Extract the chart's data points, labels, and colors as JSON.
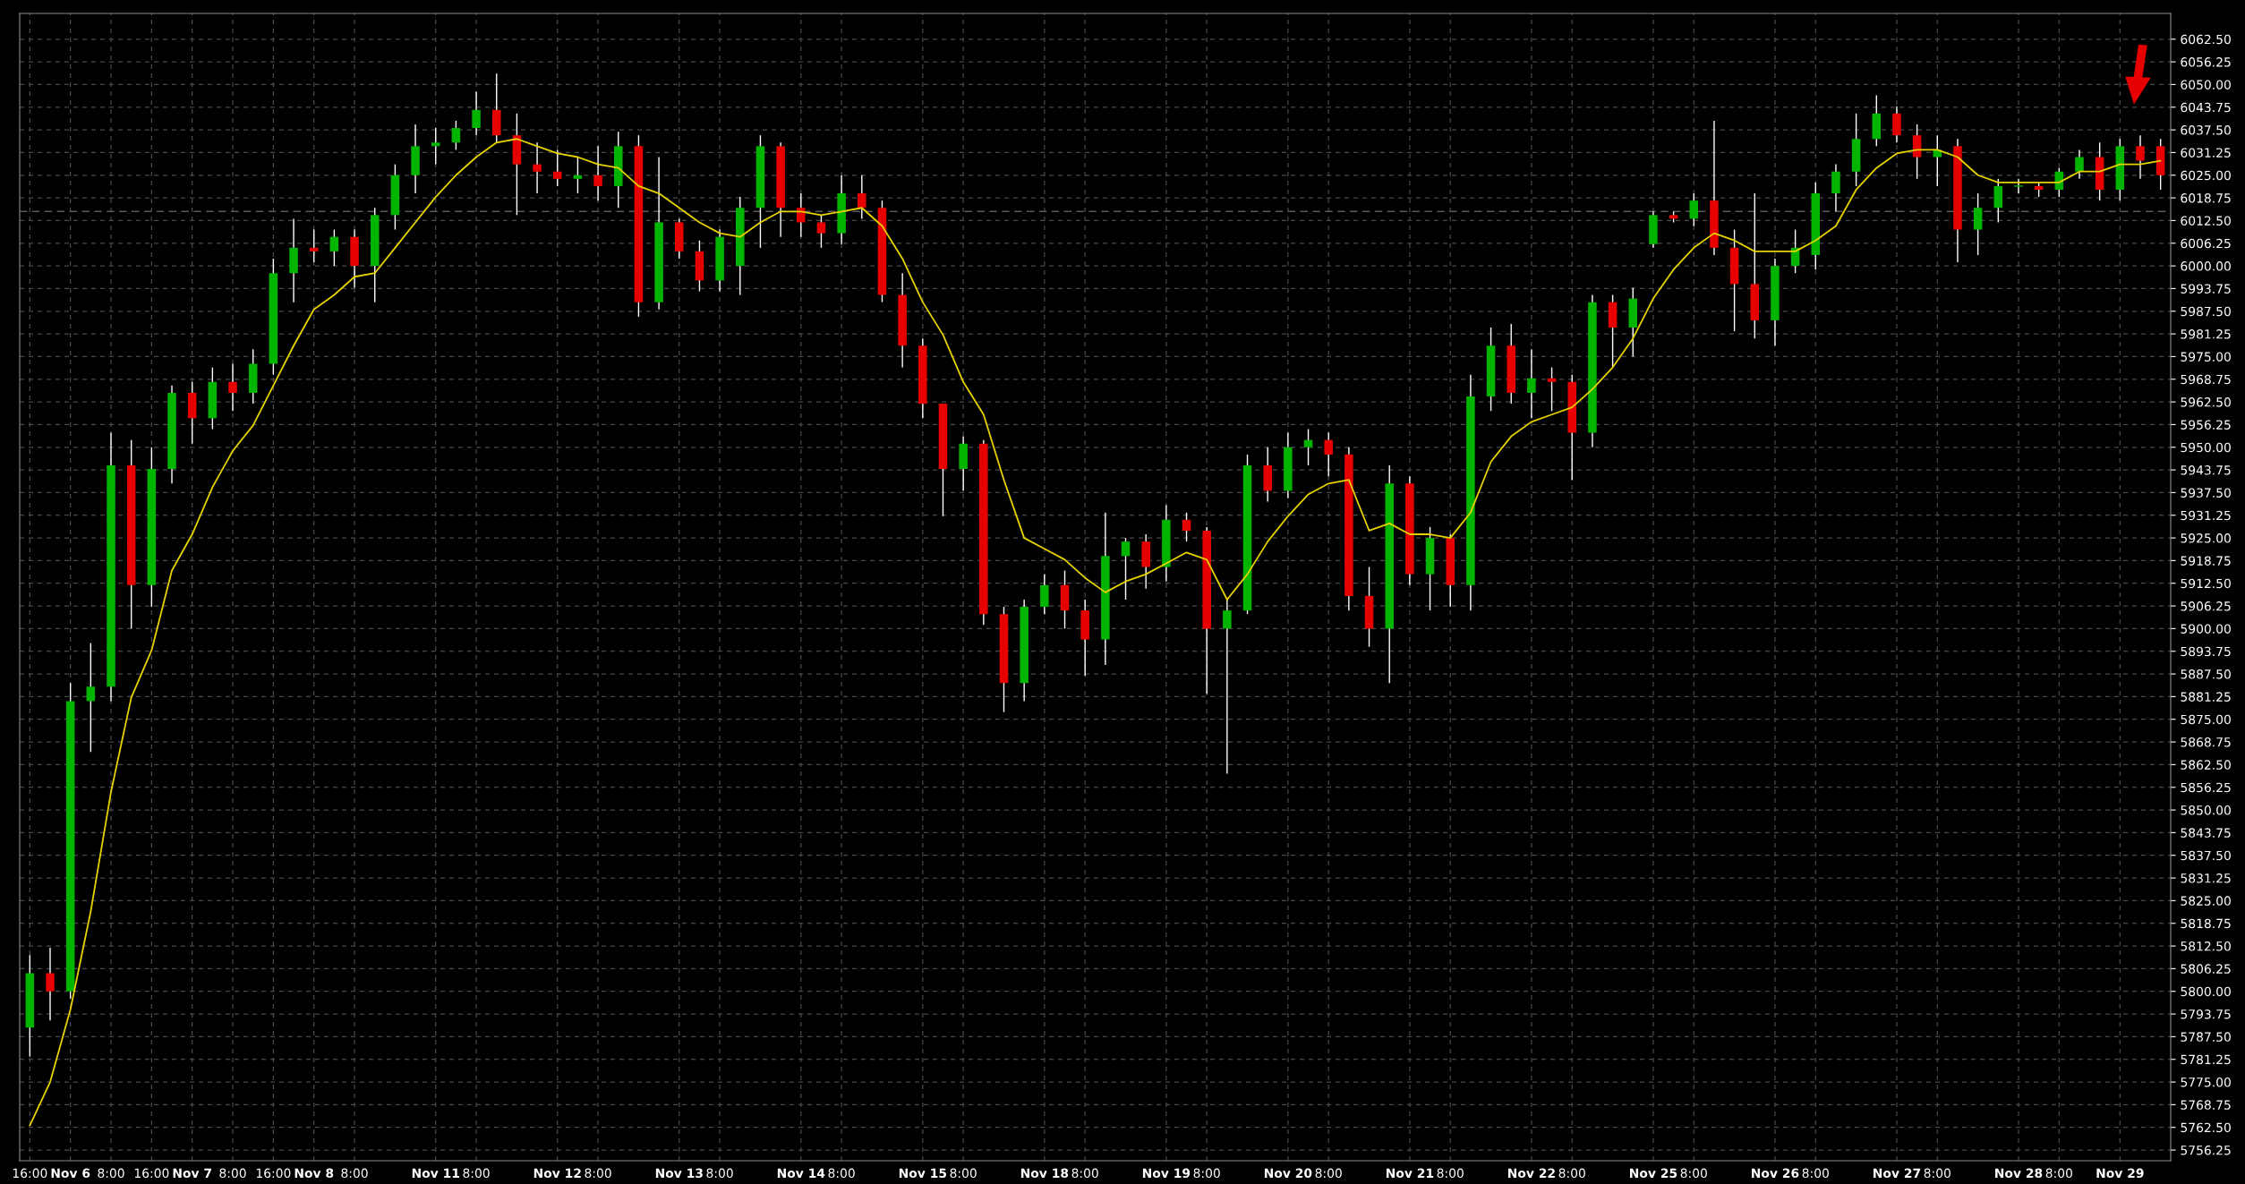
{
  "chart_data": {
    "type": "candlestick",
    "categories": [
      "16:00",
      null,
      "Nov 6",
      null,
      "8:00",
      null,
      "16:00",
      null,
      "Nov 7",
      null,
      "8:00",
      null,
      "16:00",
      null,
      "Nov 8",
      null,
      "8:00",
      null,
      null,
      null,
      "Nov 11",
      null,
      "8:00",
      null,
      null,
      null,
      "Nov 12",
      null,
      "8:00",
      null,
      null,
      null,
      "Nov 13",
      null,
      "8:00",
      null,
      null,
      null,
      "Nov 14",
      null,
      "8:00",
      null,
      null,
      null,
      "Nov 15",
      null,
      "8:00",
      null,
      null,
      null,
      "Nov 18",
      null,
      "8:00",
      null,
      null,
      null,
      "Nov 19",
      null,
      "8:00",
      null,
      null,
      null,
      "Nov 20",
      null,
      "8:00",
      null,
      null,
      null,
      "Nov 21",
      null,
      "8:00",
      null,
      null,
      null,
      "Nov 22",
      null,
      "8:00",
      null,
      null,
      null,
      "Nov 25",
      null,
      "8:00",
      null,
      null,
      null,
      "Nov 26",
      null,
      "8:00",
      null,
      null,
      null,
      "Nov 27",
      null,
      "8:00",
      null,
      null,
      null,
      "Nov 28",
      null,
      "8:00",
      null,
      null,
      "Nov 29",
      null,
      null
    ],
    "ohlc": [
      [
        5790,
        5810,
        5782,
        5805
      ],
      [
        5805,
        5812,
        5792,
        5800
      ],
      [
        5800,
        5885,
        5798,
        5880
      ],
      [
        5880,
        5896,
        5866,
        5884
      ],
      [
        5884,
        5954,
        5880,
        5945
      ],
      [
        5945,
        5952,
        5900,
        5912
      ],
      [
        5912,
        5950,
        5906,
        5944
      ],
      [
        5944,
        5967,
        5940,
        5965
      ],
      [
        5965,
        5968,
        5951,
        5958
      ],
      [
        5958,
        5972,
        5955,
        5968
      ],
      [
        5968,
        5973,
        5960,
        5965
      ],
      [
        5965,
        5977,
        5962,
        5973
      ],
      [
        5973,
        6002,
        5970,
        5998
      ],
      [
        5998,
        6013,
        5990,
        6005
      ],
      [
        6005,
        6010,
        6001,
        6004
      ],
      [
        6004,
        6010,
        6000,
        6008
      ],
      [
        6008,
        6010,
        5994,
        6000
      ],
      [
        6000,
        6016,
        5990,
        6014
      ],
      [
        6014,
        6028,
        6010,
        6025
      ],
      [
        6025,
        6039,
        6020,
        6033
      ],
      [
        6033,
        6038,
        6028,
        6034
      ],
      [
        6034,
        6040,
        6032,
        6038
      ],
      [
        6038,
        6048,
        6036,
        6043
      ],
      [
        6043,
        6053,
        6034,
        6036
      ],
      [
        6036,
        6042,
        6014,
        6028
      ],
      [
        6028,
        6034,
        6020,
        6026
      ],
      [
        6026,
        6032,
        6022,
        6024
      ],
      [
        6024,
        6030,
        6020,
        6025
      ],
      [
        6025,
        6033,
        6018,
        6022
      ],
      [
        6022,
        6037,
        6016,
        6033
      ],
      [
        6033,
        6036,
        5986,
        5990
      ],
      [
        5990,
        6030,
        5988,
        6012
      ],
      [
        6012,
        6013,
        6002,
        6004
      ],
      [
        6004,
        6007,
        5993,
        5996
      ],
      [
        5996,
        6010,
        5993,
        6008
      ],
      [
        6000,
        6019,
        5992,
        6016
      ],
      [
        6016,
        6036,
        6005,
        6033
      ],
      [
        6033,
        6034,
        6008,
        6016
      ],
      [
        6016,
        6020,
        6008,
        6012
      ],
      [
        6012,
        6014,
        6005,
        6009
      ],
      [
        6009,
        6025,
        6006,
        6020
      ],
      [
        6020,
        6025,
        6013,
        6016
      ],
      [
        6016,
        6018,
        5990,
        5992
      ],
      [
        5992,
        5998,
        5972,
        5978
      ],
      [
        5978,
        5980,
        5958,
        5962
      ],
      [
        5962,
        5962,
        5931,
        5944
      ],
      [
        5944,
        5953,
        5938,
        5951
      ],
      [
        5951,
        5952,
        5901,
        5904
      ],
      [
        5904,
        5906,
        5877,
        5885
      ],
      [
        5885,
        5908,
        5880,
        5906
      ],
      [
        5906,
        5915,
        5904,
        5912
      ],
      [
        5912,
        5916,
        5900,
        5905
      ],
      [
        5905,
        5908,
        5887,
        5897
      ],
      [
        5897,
        5932,
        5890,
        5920
      ],
      [
        5920,
        5925,
        5908,
        5924
      ],
      [
        5924,
        5926,
        5911,
        5917
      ],
      [
        5917,
        5934,
        5913,
        5930
      ],
      [
        5930,
        5932,
        5924,
        5927
      ],
      [
        5927,
        5928,
        5882,
        5900
      ],
      [
        5900,
        5908,
        5860,
        5905
      ],
      [
        5905,
        5948,
        5904,
        5945
      ],
      [
        5945,
        5950,
        5935,
        5938
      ],
      [
        5938,
        5954,
        5936,
        5950
      ],
      [
        5950,
        5955,
        5945,
        5952
      ],
      [
        5952,
        5954,
        5942,
        5948
      ],
      [
        5948,
        5950,
        5905,
        5909
      ],
      [
        5909,
        5917,
        5895,
        5900
      ],
      [
        5900,
        5945,
        5885,
        5940
      ],
      [
        5940,
        5942,
        5912,
        5915
      ],
      [
        5915,
        5928,
        5905,
        5925
      ],
      [
        5925,
        5926,
        5906,
        5912
      ],
      [
        5912,
        5970,
        5905,
        5964
      ],
      [
        5964,
        5983,
        5960,
        5978
      ],
      [
        5978,
        5984,
        5962,
        5965
      ],
      [
        5965,
        5977,
        5958,
        5969
      ],
      [
        5969,
        5972,
        5960,
        5968
      ],
      [
        5968,
        5970,
        5941,
        5954
      ],
      [
        5954,
        5992,
        5950,
        5990
      ],
      [
        5990,
        5992,
        5972,
        5983
      ],
      [
        5983,
        5994,
        5975,
        5991
      ],
      [
        6006,
        6015,
        6005,
        6014
      ],
      [
        6014,
        6015,
        6012,
        6013
      ],
      [
        6013,
        6020,
        6011,
        6018
      ],
      [
        6018,
        6040,
        6003,
        6005
      ],
      [
        6005,
        6010,
        5982,
        5995
      ],
      [
        5995,
        6020,
        5980,
        5985
      ],
      [
        5985,
        6002,
        5978,
        6000
      ],
      [
        6000,
        6010,
        5998,
        6005
      ],
      [
        6003,
        6023,
        5999,
        6020
      ],
      [
        6020,
        6028,
        6015,
        6026
      ],
      [
        6026,
        6042,
        6022,
        6035
      ],
      [
        6035,
        6047,
        6033,
        6042
      ],
      [
        6042,
        6044,
        6034,
        6036
      ],
      [
        6036,
        6039,
        6024,
        6030
      ],
      [
        6030,
        6036,
        6022,
        6032
      ],
      [
        6033,
        6035,
        6001,
        6010
      ],
      [
        6010,
        6020,
        6003,
        6016
      ],
      [
        6016,
        6024,
        6012,
        6022
      ],
      [
        6022,
        6024,
        6020,
        6022
      ],
      [
        6022,
        6023,
        6019,
        6021
      ],
      [
        6021,
        6027,
        6019,
        6026
      ],
      [
        6026,
        6032,
        6024,
        6030
      ],
      [
        6030,
        6034,
        6018,
        6021
      ],
      [
        6021,
        6035,
        6018,
        6033
      ],
      [
        6033,
        6036,
        6024,
        6029
      ],
      [
        6033,
        6035,
        6021,
        6025
      ]
    ],
    "colors": [
      "#00b400",
      "#e60000",
      "#00b400",
      "#00b400",
      "#00b400",
      "#e60000",
      "#00b400",
      "#00b400",
      "#e60000",
      "#00b400",
      "#e60000",
      "#00b400",
      "#00b400",
      "#00b400",
      "#e60000",
      "#00b400",
      "#e60000",
      "#00b400",
      "#00b400",
      "#00b400",
      "#00b400",
      "#00b400",
      "#00b400",
      "#e60000",
      "#e60000",
      "#e60000",
      "#e60000",
      "#00b400",
      "#e60000",
      "#00b400",
      "#e60000",
      "#00b400",
      "#e60000",
      "#e60000",
      "#00b400",
      "#00b400",
      "#00b400",
      "#e60000",
      "#e60000",
      "#e60000",
      "#00b400",
      "#e60000",
      "#e60000",
      "#e60000",
      "#e60000",
      "#e60000",
      "#00b400",
      "#e60000",
      "#e60000",
      "#00b400",
      "#00b400",
      "#e60000",
      "#e60000",
      "#00b400",
      "#00b400",
      "#e60000",
      "#00b400",
      "#e60000",
      "#e60000",
      "#00b400",
      "#00b400",
      "#e60000",
      "#00b400",
      "#00b400",
      "#e60000",
      "#e60000",
      "#e60000",
      "#00b400",
      "#e60000",
      "#00b400",
      "#e60000",
      "#00b400",
      "#00b400",
      "#e60000",
      "#00b400",
      "#e60000",
      "#e60000",
      "#00b400",
      "#e60000",
      "#00b400",
      "#00b400",
      "#e60000",
      "#00b400",
      "#e60000",
      "#e60000",
      "#e60000",
      "#00b400",
      "#00b400",
      "#00b400",
      "#00b400",
      "#00b400",
      "#00b400",
      "#e60000",
      "#e60000",
      "#00b400",
      "#e60000",
      "#00b400",
      "#00b400",
      "#00b400",
      "#e60000",
      "#00b400",
      "#00b400",
      "#e60000",
      "#00b400",
      "#e60000",
      "#e60000"
    ],
    "series": [
      {
        "type": "line",
        "color": "#e6d200",
        "values": [
          5763,
          5775,
          5795,
          5822,
          5855,
          5881,
          5894,
          5916,
          5926,
          5939,
          5949,
          5956,
          5967,
          5978,
          5988,
          5992,
          5997,
          5998,
          6005,
          6012,
          6019,
          6025,
          6030,
          6034,
          6035,
          6033,
          6031,
          6030,
          6028,
          6027,
          6022,
          6020,
          6016,
          6012,
          6009,
          6008,
          6012,
          6015,
          6015,
          6014,
          6015,
          6016,
          6011,
          6002,
          5990,
          5981,
          5968,
          5959,
          5941,
          5925,
          5922,
          5919,
          5914,
          5910,
          5913,
          5915,
          5918,
          5921,
          5919,
          5908,
          5915,
          5924,
          5931,
          5937,
          5940,
          5941,
          5927,
          5929,
          5926,
          5926,
          5925,
          5932,
          5946,
          5953,
          5957,
          5959,
          5961,
          5966,
          5972,
          5980,
          5991,
          5999,
          6005,
          6009,
          6007,
          6004,
          6004,
          6004,
          6007,
          6011,
          6021,
          6027,
          6031,
          6032,
          6032,
          6030,
          6025,
          6023,
          6023,
          6023,
          6023,
          6026,
          6026,
          6028,
          6028,
          6029
        ]
      }
    ],
    "ylim": [
      5753.3,
      6069.6
    ],
    "yticks": [
      {
        "value": 5756.25,
        "label": "5756.25"
      },
      {
        "value": 5762.5,
        "label": "5762.50"
      },
      {
        "value": 5768.75,
        "label": "5768.75"
      },
      {
        "value": 5775,
        "label": "5775.00"
      },
      {
        "value": 5781.25,
        "label": "5781.25"
      },
      {
        "value": 5787.5,
        "label": "5787.50"
      },
      {
        "value": 5793.75,
        "label": "5793.75"
      },
      {
        "value": 5800,
        "label": "5800.00"
      },
      {
        "value": 5806.25,
        "label": "5806.25"
      },
      {
        "value": 5812.5,
        "label": "5812.50"
      },
      {
        "value": 5818.75,
        "label": "5818.75"
      },
      {
        "value": 5825,
        "label": "5825.00"
      },
      {
        "value": 5831.25,
        "label": "5831.25"
      },
      {
        "value": 5837.5,
        "label": "5837.50"
      },
      {
        "value": 5843.75,
        "label": "5843.75"
      },
      {
        "value": 5850,
        "label": "5850.00"
      },
      {
        "value": 5856.25,
        "label": "5856.25"
      },
      {
        "value": 5862.5,
        "label": "5862.50"
      },
      {
        "value": 5868.75,
        "label": "5868.75"
      },
      {
        "value": 5875,
        "label": "5875.00"
      },
      {
        "value": 5881.25,
        "label": "5881.25"
      },
      {
        "value": 5887.5,
        "label": "5887.50"
      },
      {
        "value": 5893.75,
        "label": "5893.75"
      },
      {
        "value": 5900,
        "label": "5900.00"
      },
      {
        "value": 5906.25,
        "label": "5906.25"
      },
      {
        "value": 5912.5,
        "label": "5912.50"
      },
      {
        "value": 5918.75,
        "label": "5918.75"
      },
      {
        "value": 5925,
        "label": "5925.00"
      },
      {
        "value": 5931.25,
        "label": "5931.25"
      },
      {
        "value": 5937.5,
        "label": "5937.50"
      },
      {
        "value": 5943.75,
        "label": "5943.75"
      },
      {
        "value": 5950,
        "label": "5950.00"
      },
      {
        "value": 5956.25,
        "label": "5956.25"
      },
      {
        "value": 5962.5,
        "label": "5962.50"
      },
      {
        "value": 5968.75,
        "label": "5968.75"
      },
      {
        "value": 5975,
        "label": "5975.00"
      },
      {
        "value": 5981.25,
        "label": "5981.25"
      },
      {
        "value": 5987.5,
        "label": "5987.50"
      },
      {
        "value": 5993.75,
        "label": "5993.75"
      },
      {
        "value": 6000,
        "label": "6000.00"
      },
      {
        "value": 6006.25,
        "label": "6006.25"
      },
      {
        "value": 6012.5,
        "label": "6012.50"
      },
      {
        "value": 6018.75,
        "label": "6018.75"
      },
      {
        "value": 6025,
        "label": "6025.00"
      },
      {
        "value": 6031.25,
        "label": "6031.25"
      },
      {
        "value": 6037.5,
        "label": "6037.50"
      },
      {
        "value": 6043.75,
        "label": "6043.75"
      },
      {
        "value": 6050,
        "label": "6050.00"
      },
      {
        "value": 6056.25,
        "label": "6056.25"
      },
      {
        "value": 6062.5,
        "label": "6062.50"
      }
    ],
    "ref_lines": [
      {
        "axis": "y",
        "value": 6015,
        "color": "#5a5a5a",
        "line_style": "dashed"
      }
    ],
    "grid": true
  }
}
